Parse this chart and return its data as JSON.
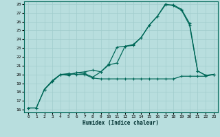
{
  "xlabel": "Humidex (Indice chaleur)",
  "bg_color": "#b8dede",
  "line_color": "#006858",
  "grid_color": "#a0cccc",
  "xlim": [
    -0.5,
    23.5
  ],
  "ylim": [
    15.7,
    28.3
  ],
  "xticks": [
    0,
    1,
    2,
    3,
    4,
    5,
    6,
    7,
    8,
    9,
    10,
    11,
    12,
    13,
    14,
    15,
    16,
    17,
    18,
    19,
    20,
    21,
    22,
    23
  ],
  "yticks": [
    16,
    17,
    18,
    19,
    20,
    21,
    22,
    23,
    24,
    25,
    26,
    27,
    28
  ],
  "line1_x": [
    0,
    1,
    2,
    3,
    4,
    5,
    6,
    7,
    8,
    9,
    10,
    11,
    12,
    13,
    14,
    15,
    16,
    17,
    18,
    19,
    20,
    21,
    22,
    23
  ],
  "line1_y": [
    16.2,
    16.2,
    18.3,
    19.3,
    20.0,
    20.1,
    20.0,
    20.0,
    19.6,
    19.5,
    19.5,
    19.5,
    19.5,
    19.5,
    19.5,
    19.5,
    19.5,
    19.5,
    19.5,
    19.8,
    19.8,
    19.8,
    19.8,
    20.0
  ],
  "line2_x": [
    0,
    1,
    2,
    3,
    4,
    5,
    6,
    7,
    8,
    9,
    10,
    11,
    12,
    13,
    14,
    15,
    16,
    17,
    18,
    19,
    20,
    21,
    22,
    23
  ],
  "line2_y": [
    16.2,
    16.2,
    18.3,
    19.3,
    20.0,
    20.0,
    20.2,
    20.1,
    19.7,
    20.3,
    21.2,
    23.1,
    23.2,
    23.4,
    24.2,
    25.6,
    26.6,
    28.0,
    27.8,
    27.3,
    25.6,
    20.4,
    19.9,
    20.0
  ],
  "line3_x": [
    2,
    3,
    4,
    5,
    6,
    7,
    8,
    9,
    10,
    11,
    12,
    13,
    14,
    15,
    16,
    17,
    18,
    19,
    20,
    21,
    22,
    23
  ],
  "line3_y": [
    18.3,
    19.2,
    20.0,
    19.9,
    20.2,
    20.3,
    20.5,
    20.3,
    21.1,
    21.3,
    23.2,
    23.3,
    24.2,
    25.6,
    26.6,
    27.9,
    27.9,
    27.4,
    25.8,
    20.4,
    19.9,
    20.0
  ]
}
